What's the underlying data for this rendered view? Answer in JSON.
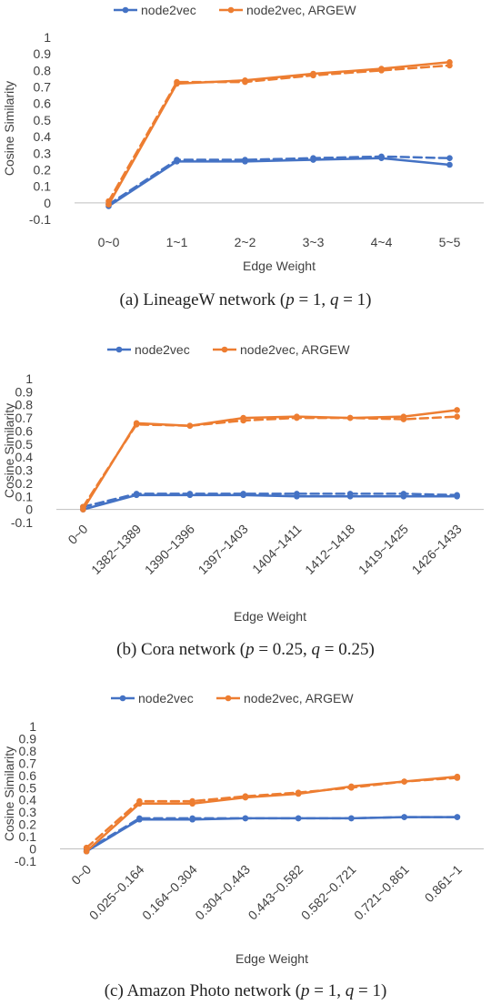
{
  "colors": {
    "blue": "#4472C4",
    "orange": "#ED7D31",
    "axis": "#BFBFBF",
    "text": "#404040"
  },
  "chart_data": [
    {
      "type": "line",
      "categories": [
        "0~0",
        "1~1",
        "2~2",
        "3~3",
        "4~4",
        "5~5"
      ],
      "xlabel": "Edge Weight",
      "ylabel": "Cosine Similarity",
      "ylim": [
        -0.1,
        1
      ],
      "yticks": [
        "-0.1",
        "0",
        "0.1",
        "0.2",
        "0.3",
        "0.4",
        "0.5",
        "0.6",
        "0.7",
        "0.8",
        "0.9",
        "1"
      ],
      "rotated_xticks": false,
      "series": [
        {
          "name": "node2vec",
          "color": "#4472C4",
          "style": "solid",
          "values": [
            -0.02,
            0.25,
            0.25,
            0.26,
            0.27,
            0.23
          ]
        },
        {
          "name": "",
          "color": "#4472C4",
          "style": "dashed",
          "values": [
            -0.01,
            0.26,
            0.26,
            0.27,
            0.28,
            0.27
          ]
        },
        {
          "name": "node2vec, ARGEW",
          "color": "#ED7D31",
          "style": "solid",
          "values": [
            -0.01,
            0.72,
            0.74,
            0.78,
            0.81,
            0.85
          ]
        },
        {
          "name": "",
          "color": "#ED7D31",
          "style": "dashed",
          "values": [
            0.01,
            0.73,
            0.73,
            0.77,
            0.8,
            0.83
          ]
        }
      ],
      "caption": "(a) LineageW network (p = 1, q = 1)"
    },
    {
      "type": "line",
      "categories": [
        "0~0",
        "1382~1389",
        "1390~1396",
        "1397~1403",
        "1404~1411",
        "1412~1418",
        "1419~1425",
        "1426~1433"
      ],
      "xlabel": "Edge Weight",
      "ylabel": "Cosine Similarity",
      "ylim": [
        -0.1,
        1
      ],
      "yticks": [
        "-0.1",
        "0",
        "0.1",
        "0.2",
        "0.3",
        "0.4",
        "0.5",
        "0.6",
        "0.7",
        "0.8",
        "0.9",
        "1"
      ],
      "rotated_xticks": true,
      "series": [
        {
          "name": "node2vec",
          "color": "#4472C4",
          "style": "solid",
          "values": [
            0.0,
            0.11,
            0.11,
            0.11,
            0.1,
            0.1,
            0.1,
            0.1
          ]
        },
        {
          "name": "",
          "color": "#4472C4",
          "style": "dashed",
          "values": [
            0.02,
            0.12,
            0.12,
            0.12,
            0.12,
            0.12,
            0.12,
            0.11
          ]
        },
        {
          "name": "node2vec, ARGEW",
          "color": "#ED7D31",
          "style": "solid",
          "values": [
            0.0,
            0.66,
            0.64,
            0.7,
            0.71,
            0.7,
            0.71,
            0.76
          ]
        },
        {
          "name": "",
          "color": "#ED7D31",
          "style": "dashed",
          "values": [
            0.02,
            0.65,
            0.64,
            0.68,
            0.7,
            0.7,
            0.69,
            0.71
          ]
        }
      ],
      "caption": "(b) Cora network (p = 0.25, q = 0.25)"
    },
    {
      "type": "line",
      "categories": [
        "0~0",
        "0.025~0.164",
        "0.164~0.304",
        "0.304~0.443",
        "0.443~0.582",
        "0.582~0.721",
        "0.721~0.861",
        "0.861~1"
      ],
      "xlabel": "Edge Weight",
      "ylabel": "Cosine Similarity",
      "ylim": [
        -0.1,
        1
      ],
      "yticks": [
        "-0.1",
        "0",
        "0.1",
        "0.2",
        "0.3",
        "0.4",
        "0.5",
        "0.6",
        "0.7",
        "0.8",
        "0.9",
        "1"
      ],
      "rotated_xticks": true,
      "series": [
        {
          "name": "node2vec",
          "color": "#4472C4",
          "style": "solid",
          "values": [
            -0.02,
            0.24,
            0.24,
            0.25,
            0.25,
            0.25,
            0.26,
            0.26
          ]
        },
        {
          "name": "",
          "color": "#4472C4",
          "style": "dashed",
          "values": [
            -0.01,
            0.25,
            0.25,
            0.25,
            0.25,
            0.25,
            0.26,
            0.26
          ]
        },
        {
          "name": "node2vec, ARGEW",
          "color": "#ED7D31",
          "style": "solid",
          "values": [
            -0.02,
            0.37,
            0.37,
            0.42,
            0.45,
            0.51,
            0.55,
            0.59
          ]
        },
        {
          "name": "",
          "color": "#ED7D31",
          "style": "dashed",
          "values": [
            0.01,
            0.39,
            0.39,
            0.43,
            0.46,
            0.5,
            0.55,
            0.58
          ]
        }
      ],
      "caption": "(c) Amazon Photo network (p = 1, q = 1)"
    }
  ]
}
